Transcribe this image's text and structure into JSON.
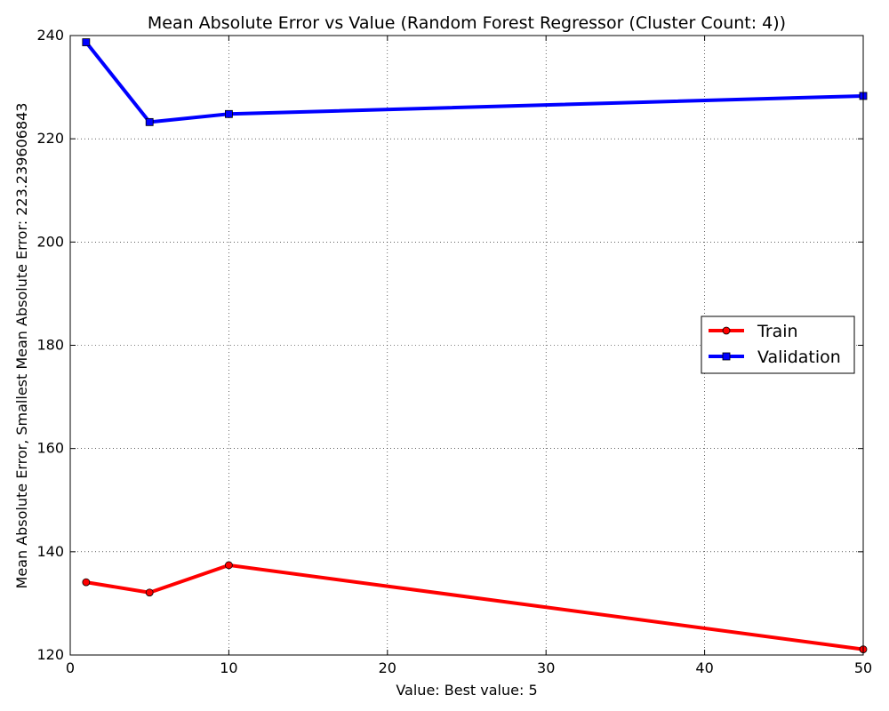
{
  "chart_data": {
    "type": "line",
    "title": "Mean Absolute Error vs Value (Random Forest Regressor (Cluster Count: 4))",
    "xlabel": "Value: Best value: 5",
    "ylabel": "Mean Absolute Error, Smallest Mean Absolute Error: 223.239606843",
    "xlim": [
      0,
      50
    ],
    "ylim": [
      120,
      240
    ],
    "xticks": [
      0,
      10,
      20,
      30,
      40,
      50
    ],
    "xtick_labels": [
      "0",
      "10",
      "20",
      "30",
      "40",
      "50"
    ],
    "yticks": [
      120,
      140,
      160,
      180,
      200,
      220,
      240
    ],
    "ytick_labels": [
      "120",
      "140",
      "160",
      "180",
      "200",
      "220",
      "240"
    ],
    "grid": true,
    "legend_position": "center-right",
    "x": [
      1,
      5,
      10,
      50
    ],
    "series": [
      {
        "name": "Train",
        "color": "#ff0000",
        "marker": "circle",
        "values": [
          134.1,
          132.1,
          137.4,
          121.1
        ]
      },
      {
        "name": "Validation",
        "color": "#0000ff",
        "marker": "square",
        "values": [
          238.7,
          223.24,
          224.8,
          228.3
        ]
      }
    ]
  }
}
